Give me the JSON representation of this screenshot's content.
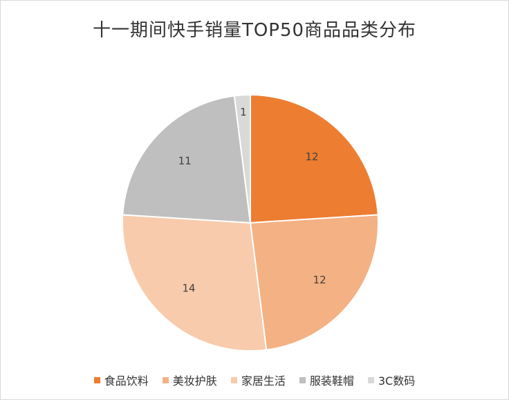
{
  "chart_data": {
    "type": "pie",
    "title": "十一期间快手销量TOP50商品品类分布",
    "categories": [
      "食品饮料",
      "美妆护肤",
      "家居生活",
      "服装鞋帽",
      "3C数码"
    ],
    "values": [
      12,
      12,
      14,
      11,
      1
    ],
    "colors": [
      "#ED7D31",
      "#F4B183",
      "#F8CBAD",
      "#BFBFBF",
      "#D9D9D9"
    ],
    "start_angle_deg": 0,
    "direction": "clockwise",
    "data_labels": true,
    "legend_position": "bottom"
  }
}
